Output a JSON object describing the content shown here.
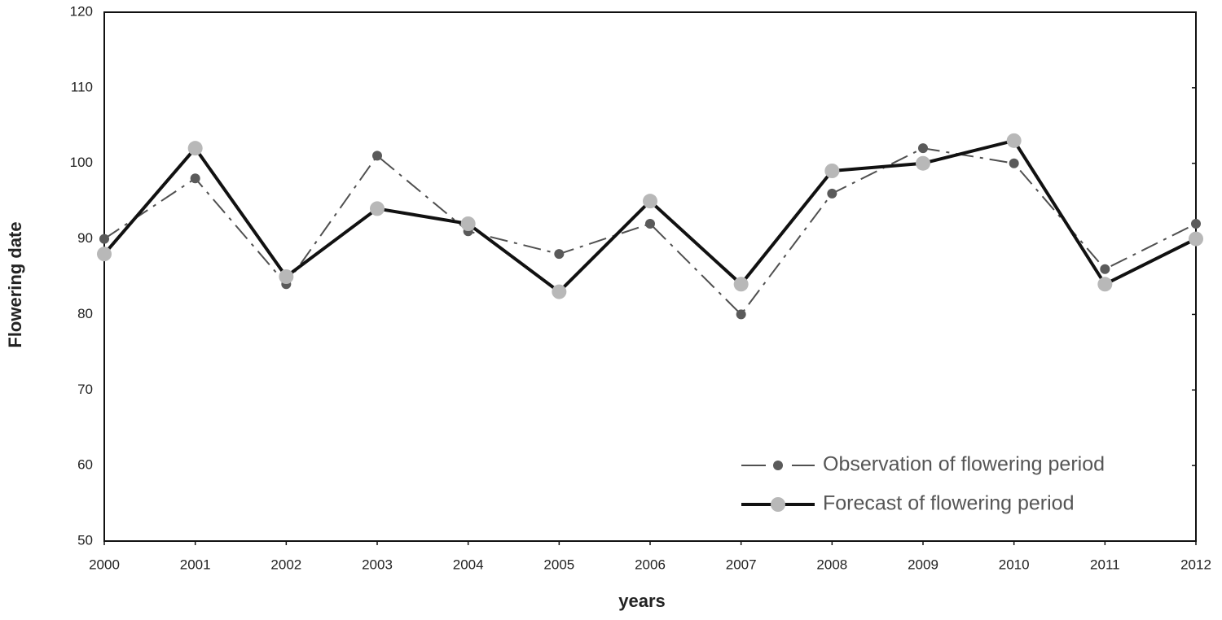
{
  "chart_data": {
    "type": "line",
    "x_label": "years",
    "y_label": "Flowering date",
    "x": [
      2000,
      2001,
      2002,
      2003,
      2004,
      2005,
      2006,
      2007,
      2008,
      2009,
      2010,
      2011,
      2012
    ],
    "xlim": [
      2000,
      2012
    ],
    "xticks": [
      2000,
      2001,
      2002,
      2003,
      2004,
      2005,
      2006,
      2007,
      2008,
      2009,
      2010,
      2011,
      2012
    ],
    "ylim": [
      50,
      120
    ],
    "yticks": [
      50,
      60,
      70,
      80,
      90,
      100,
      110,
      120
    ],
    "grid": false,
    "legend_position": "lower-right",
    "series": [
      {
        "name": "Observation of flowering period",
        "color": "#505050",
        "marker_color": "#5a5a5a",
        "line_style": "dash-dot",
        "values": [
          90,
          98,
          84,
          101,
          91,
          88,
          92,
          80,
          96,
          102,
          100,
          86,
          92
        ]
      },
      {
        "name": "Forecast of flowering period",
        "color": "#111111",
        "marker_color": "#b8b8b8",
        "line_style": "solid",
        "values": [
          88,
          102,
          85,
          94,
          92,
          83,
          95,
          84,
          99,
          100,
          103,
          84,
          90
        ]
      }
    ]
  }
}
